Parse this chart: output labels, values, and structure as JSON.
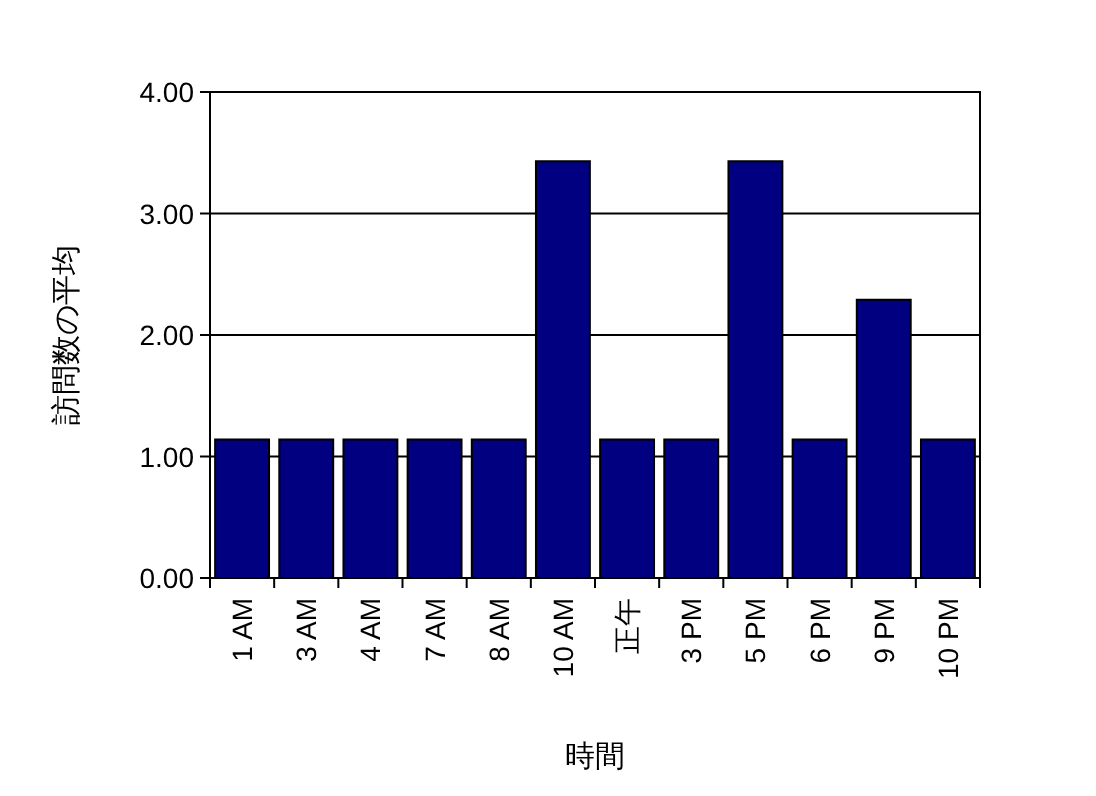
{
  "chart_data": {
    "type": "bar",
    "xlabel": "時間",
    "ylabel": "訪問数の平均",
    "categories": [
      "1 AM",
      "3 AM",
      "4 AM",
      "7 AM",
      "8 AM",
      "10 AM",
      "正午",
      "3 PM",
      "5 PM",
      "6 PM",
      "9 PM",
      "10 PM"
    ],
    "values": [
      1.14,
      1.14,
      1.14,
      1.14,
      1.14,
      3.43,
      1.14,
      1.14,
      3.43,
      1.14,
      2.29,
      1.14
    ],
    "color": "#000080",
    "ylim": [
      0,
      4
    ],
    "yticks": [
      {
        "value": 0,
        "label": "0.00"
      },
      {
        "value": 1,
        "label": "1.00"
      },
      {
        "value": 2,
        "label": "2.00"
      },
      {
        "value": 3,
        "label": "3.00"
      },
      {
        "value": 4,
        "label": "4.00"
      }
    ],
    "grid": "y"
  }
}
